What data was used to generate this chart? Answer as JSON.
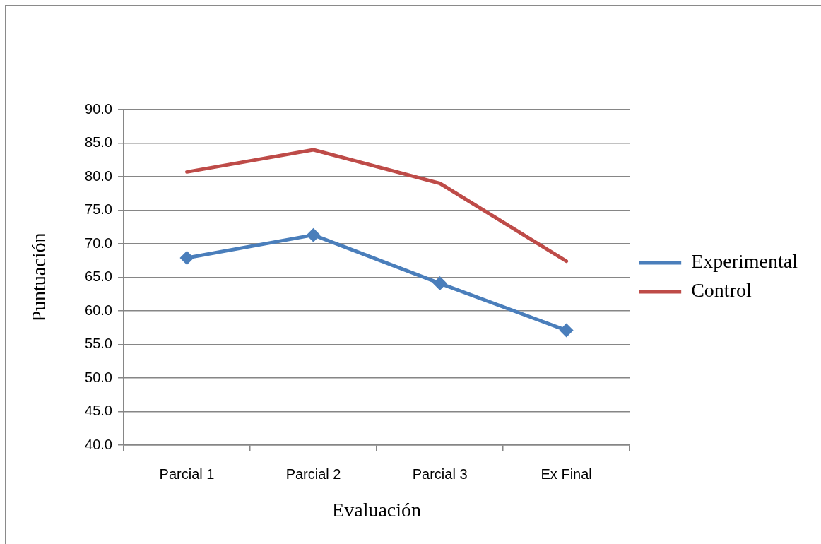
{
  "chart_data": {
    "type": "line",
    "xlabel": "Evaluación",
    "ylabel": "Puntuación",
    "categories": [
      "Parcial 1",
      "Parcial 2",
      "Parcial 3",
      "Ex Final"
    ],
    "series": [
      {
        "name": "Experimental",
        "color": "#4a7ebb",
        "marker": "diamond",
        "values": [
          67.9,
          71.3,
          64.1,
          57.1
        ]
      },
      {
        "name": "Control",
        "color": "#be4b48",
        "marker": "none",
        "values": [
          80.7,
          84.0,
          79.0,
          67.4
        ]
      }
    ],
    "ylim": [
      40,
      90
    ],
    "yticks": [
      {
        "value": 40,
        "label": "40.0"
      },
      {
        "value": 45,
        "label": "45.0"
      },
      {
        "value": 50,
        "label": "50.0"
      },
      {
        "value": 55,
        "label": "55.0"
      },
      {
        "value": 60,
        "label": "60.0"
      },
      {
        "value": 65,
        "label": "65.0"
      },
      {
        "value": 70,
        "label": "70.0"
      },
      {
        "value": 75,
        "label": "75.0"
      },
      {
        "value": 80,
        "label": "80.0"
      },
      {
        "value": 85,
        "label": "85.0"
      },
      {
        "value": 90,
        "label": "90.0"
      }
    ],
    "grid": "y",
    "legend": "right",
    "line_style": "solid"
  }
}
